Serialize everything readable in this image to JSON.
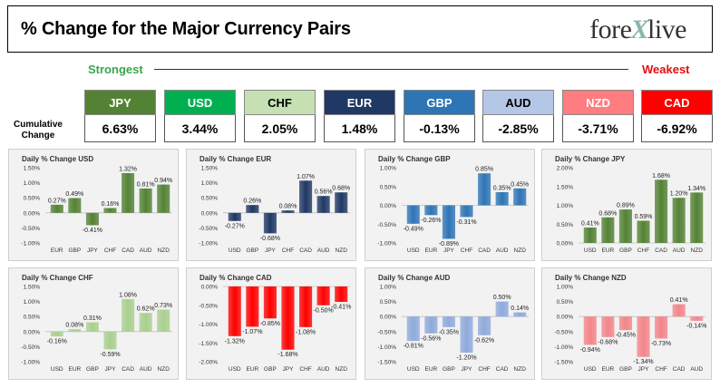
{
  "header": {
    "title": "% Change for the Major Currency Pairs",
    "logo_left": "fore",
    "logo_x": "X",
    "logo_right": "live",
    "strongest_label": "Strongest",
    "weakest_label": "Weakest",
    "cumulative_label": "Cumulative Change"
  },
  "currencies": [
    {
      "code": "JPY",
      "value": "6.63%",
      "color": "#548235",
      "text_color": "#ffffff"
    },
    {
      "code": "USD",
      "value": "3.44%",
      "color": "#00b050",
      "text_color": "#ffffff"
    },
    {
      "code": "CHF",
      "value": "2.05%",
      "color": "#c6e0b4",
      "text_color": "#000000"
    },
    {
      "code": "EUR",
      "value": "1.48%",
      "color": "#203864",
      "text_color": "#ffffff"
    },
    {
      "code": "GBP",
      "value": "-0.13%",
      "color": "#2e75b6",
      "text_color": "#ffffff"
    },
    {
      "code": "AUD",
      "value": "-2.85%",
      "color": "#b4c7e7",
      "text_color": "#000000"
    },
    {
      "code": "NZD",
      "value": "-3.71%",
      "color": "#ff7c80",
      "text_color": "#ffffff"
    },
    {
      "code": "CAD",
      "value": "-6.92%",
      "color": "#ff0000",
      "text_color": "#ffffff"
    }
  ],
  "chart_data": [
    {
      "type": "bar",
      "title": "Daily % Change USD",
      "categories": [
        "EUR",
        "GBP",
        "JPY",
        "CHF",
        "CAD",
        "AUD",
        "NZD"
      ],
      "values": [
        0.27,
        0.49,
        -0.41,
        0.16,
        1.32,
        0.81,
        0.94
      ],
      "labels": [
        "0.27%",
        "0.49%",
        "-0.41%",
        "0.16%",
        "1.32%",
        "0.81%",
        "0.94%"
      ],
      "ticks": [
        "1.50%",
        "1.00%",
        "0.50%",
        "0.00%",
        "-0.50%",
        "-1.00%"
      ],
      "ylim": [
        -1.0,
        1.5
      ],
      "color": "#548235"
    },
    {
      "type": "bar",
      "title": "Daily % Change EUR",
      "categories": [
        "USD",
        "GBP",
        "JPY",
        "CHF",
        "CAD",
        "AUD",
        "NZD"
      ],
      "values": [
        -0.27,
        0.26,
        -0.68,
        0.08,
        1.07,
        0.56,
        0.68
      ],
      "labels": [
        "-0.27%",
        "0.26%",
        "-0.68%",
        "0.08%",
        "1.07%",
        "0.56%",
        "0.68%"
      ],
      "ticks": [
        "1.50%",
        "1.00%",
        "0.50%",
        "0.00%",
        "-0.50%",
        "-1.00%"
      ],
      "ylim": [
        -1.0,
        1.5
      ],
      "color": "#203864"
    },
    {
      "type": "bar",
      "title": "Daily % Change GBP",
      "categories": [
        "USD",
        "EUR",
        "JPY",
        "CHF",
        "CAD",
        "AUD",
        "NZD"
      ],
      "values": [
        -0.49,
        -0.26,
        -0.89,
        -0.31,
        0.85,
        0.35,
        0.45
      ],
      "labels": [
        "-0.49%",
        "-0.26%",
        "-0.89%",
        "-0.31%",
        "0.85%",
        "0.35%",
        "0.45%"
      ],
      "ticks": [
        "1.00%",
        "0.50%",
        "0.00%",
        "-0.50%",
        "-1.00%"
      ],
      "ylim": [
        -1.0,
        1.0
      ],
      "color": "#2e75b6"
    },
    {
      "type": "bar",
      "title": "Daily % Change JPY",
      "categories": [
        "USD",
        "EUR",
        "GBP",
        "CHF",
        "CAD",
        "AUD",
        "NZD"
      ],
      "values": [
        0.41,
        0.68,
        0.89,
        0.59,
        1.68,
        1.2,
        1.34
      ],
      "labels": [
        "0.41%",
        "0.68%",
        "0.89%",
        "0.59%",
        "1.68%",
        "1.20%",
        "1.34%"
      ],
      "ticks": [
        "2.00%",
        "1.50%",
        "1.00%",
        "0.50%",
        "0.00%"
      ],
      "ylim": [
        0,
        2.0
      ],
      "color": "#548235"
    },
    {
      "type": "bar",
      "title": "Daily % Change CHF",
      "categories": [
        "USD",
        "EUR",
        "GBP",
        "JPY",
        "CAD",
        "AUD",
        "NZD"
      ],
      "values": [
        -0.16,
        0.08,
        0.31,
        -0.59,
        1.08,
        0.62,
        0.73
      ],
      "labels": [
        "-0.16%",
        "0.08%",
        "0.31%",
        "-0.59%",
        "1.08%",
        "0.62%",
        "0.73%"
      ],
      "ticks": [
        "1.50%",
        "1.00%",
        "0.50%",
        "0.00%",
        "-0.50%",
        "-1.00%"
      ],
      "ylim": [
        -1.0,
        1.5
      ],
      "color": "#a9d08e"
    },
    {
      "type": "bar",
      "title": "Daily % Change CAD",
      "categories": [
        "USD",
        "EUR",
        "GBP",
        "JPY",
        "CHF",
        "AUD",
        "NZD"
      ],
      "values": [
        -1.32,
        -1.07,
        -0.85,
        -1.68,
        -1.08,
        -0.5,
        -0.41
      ],
      "labels": [
        "-1.32%",
        "-1.07%",
        "-0.85%",
        "-1.68%",
        "-1.08%",
        "-0.50%",
        "-0.41%"
      ],
      "ticks": [
        "0.00%",
        "-0.50%",
        "-1.00%",
        "-1.50%",
        "-2.00%"
      ],
      "ylim": [
        -2.0,
        0
      ],
      "color": "#ff0000"
    },
    {
      "type": "bar",
      "title": "Daily % Change AUD",
      "categories": [
        "USD",
        "EUR",
        "GBP",
        "JPY",
        "CHF",
        "CAD",
        "NZD"
      ],
      "values": [
        -0.81,
        -0.56,
        -0.35,
        -1.2,
        -0.62,
        0.5,
        0.14
      ],
      "labels": [
        "-0.81%",
        "-0.56%",
        "-0.35%",
        "-1.20%",
        "-0.62%",
        "0.50%",
        "0.14%"
      ],
      "ticks": [
        "1.00%",
        "0.50%",
        "0.00%",
        "-0.50%",
        "-1.00%",
        "-1.50%"
      ],
      "ylim": [
        -1.5,
        1.0
      ],
      "color": "#8faadc"
    },
    {
      "type": "bar",
      "title": "Daily % Change NZD",
      "categories": [
        "USD",
        "EUR",
        "GBP",
        "JPY",
        "CHF",
        "CAD",
        "AUD"
      ],
      "values": [
        -0.94,
        -0.68,
        -0.45,
        -1.34,
        -0.73,
        0.41,
        -0.14
      ],
      "labels": [
        "-0.94%",
        "-0.68%",
        "-0.45%",
        "-1.34%",
        "-0.73%",
        "0.41%",
        "-0.14%"
      ],
      "ticks": [
        "1.00%",
        "0.50%",
        "0.00%",
        "-0.50%",
        "-1.00%",
        "-1.50%"
      ],
      "ylim": [
        -1.5,
        1.0
      ],
      "color": "#f4858a"
    }
  ]
}
